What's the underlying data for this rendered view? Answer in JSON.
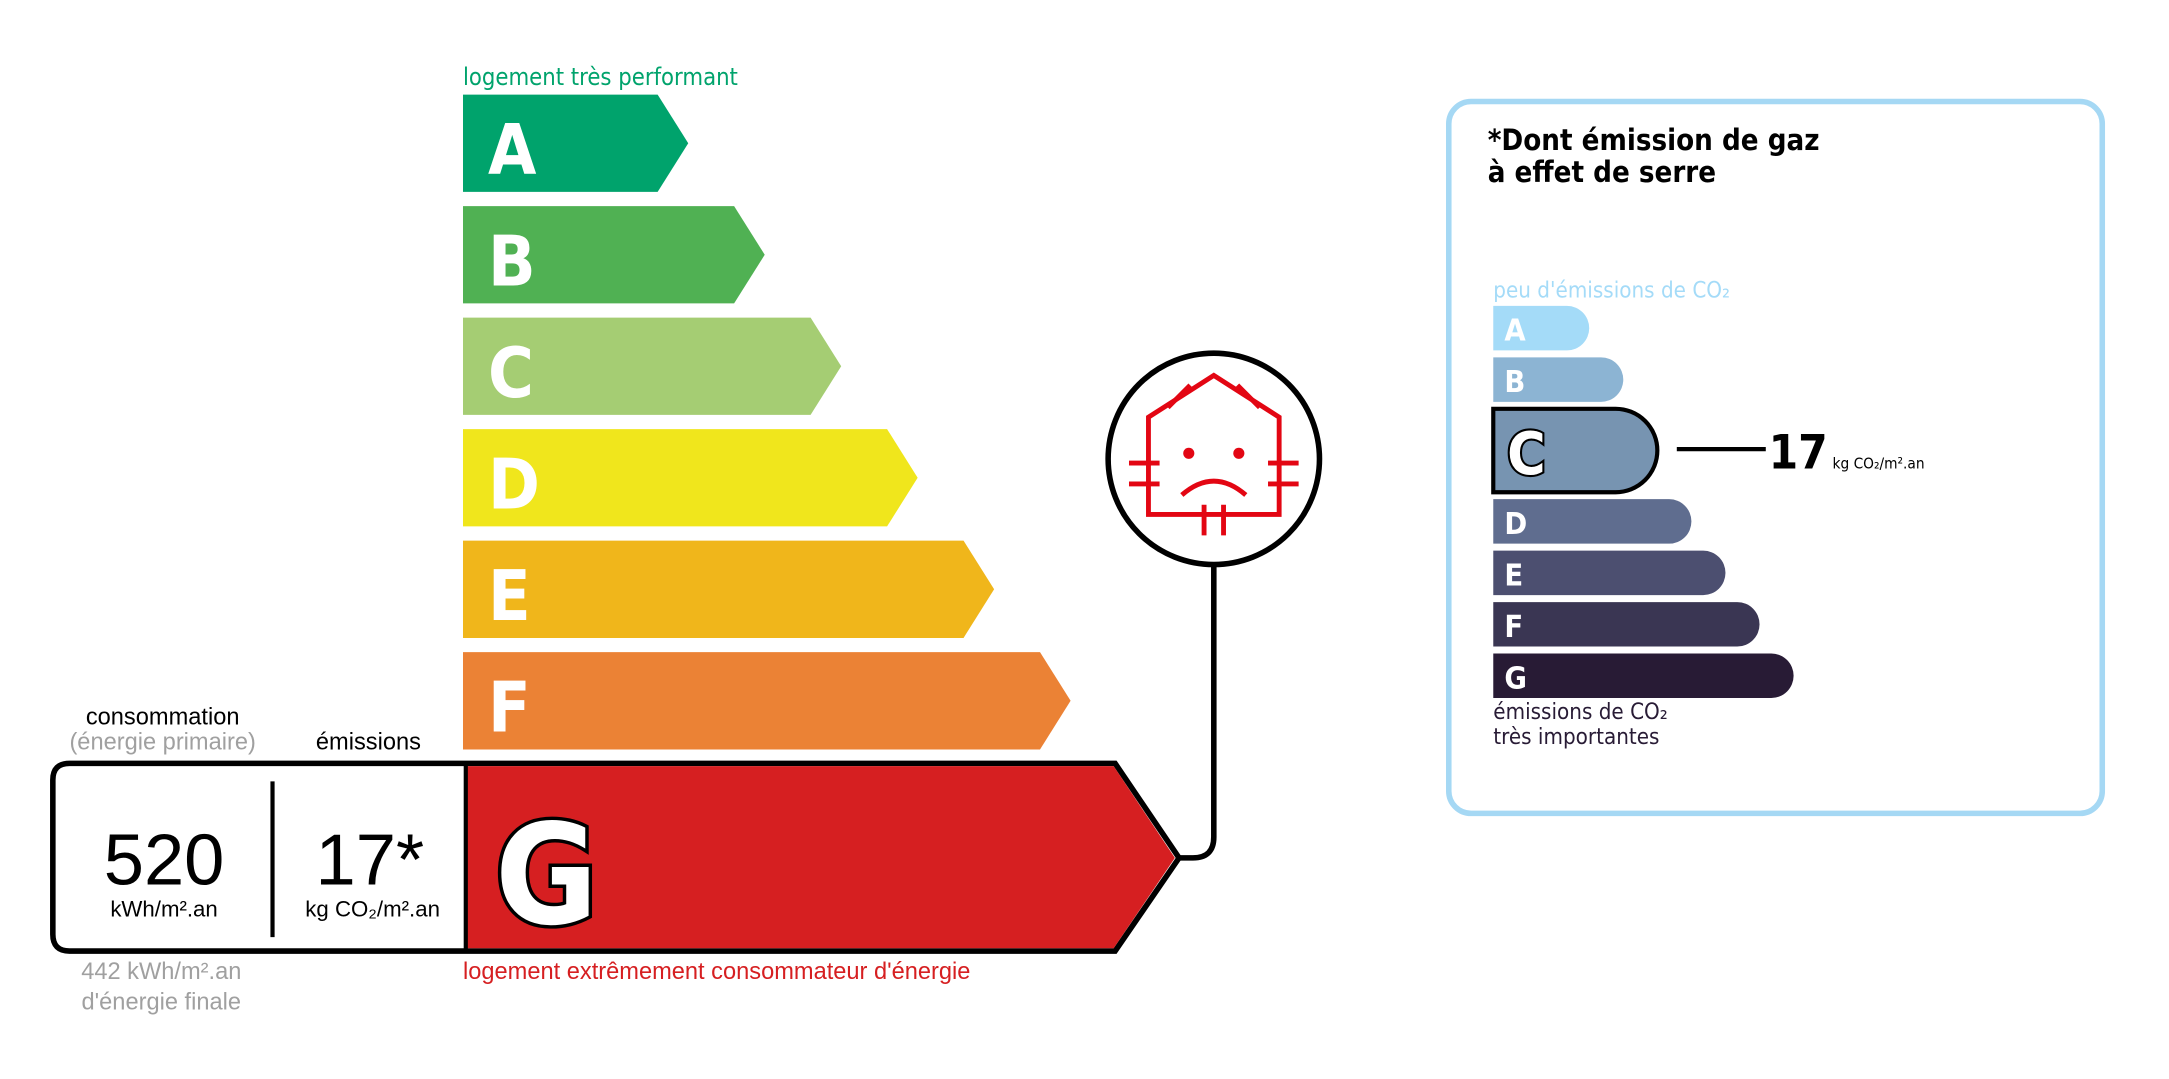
{
  "energy": {
    "top_label": "logement très performant",
    "bottom_label": "logement extrêmement consommateur d'énergie",
    "classes": [
      {
        "letter": "A",
        "color": "#00a36c"
      },
      {
        "letter": "B",
        "color": "#50b153"
      },
      {
        "letter": "C",
        "color": "#a5cd73"
      },
      {
        "letter": "D",
        "color": "#f0e61c"
      },
      {
        "letter": "E",
        "color": "#f0b61b"
      },
      {
        "letter": "F",
        "color": "#eb8235"
      },
      {
        "letter": "G",
        "color": "#d61f21"
      }
    ],
    "current_class": "G",
    "consumption_label": "consommation",
    "consumption_sublabel": "(énergie primaire)",
    "emissions_label": "émissions",
    "consumption_value": "520",
    "consumption_unit": "kWh/m².an",
    "emissions_value": "17*",
    "emissions_unit": "kg CO₂/m².an",
    "final_energy_value": "442 kWh/m².an",
    "final_energy_label": "d'énergie finale",
    "icon": "house-sad-heat-loss-icon"
  },
  "ges": {
    "title_line1": "*Dont émission de gaz",
    "title_line2": "à effet de serre",
    "top_label": "peu d'émissions de CO₂",
    "bottom_label_line1": "émissions de CO₂",
    "bottom_label_line2": "très importantes",
    "classes": [
      {
        "letter": "A",
        "color": "#a4dbf8"
      },
      {
        "letter": "B",
        "color": "#8cb4d3"
      },
      {
        "letter": "C",
        "color": "#7794b1"
      },
      {
        "letter": "D",
        "color": "#5f6d8f"
      },
      {
        "letter": "E",
        "color": "#4c4f70"
      },
      {
        "letter": "F",
        "color": "#3a3653"
      },
      {
        "letter": "G",
        "color": "#281b35"
      }
    ],
    "current_class": "C",
    "value": "17",
    "unit": "kg CO₂/m².an",
    "border_color": "#a5d8f4"
  }
}
